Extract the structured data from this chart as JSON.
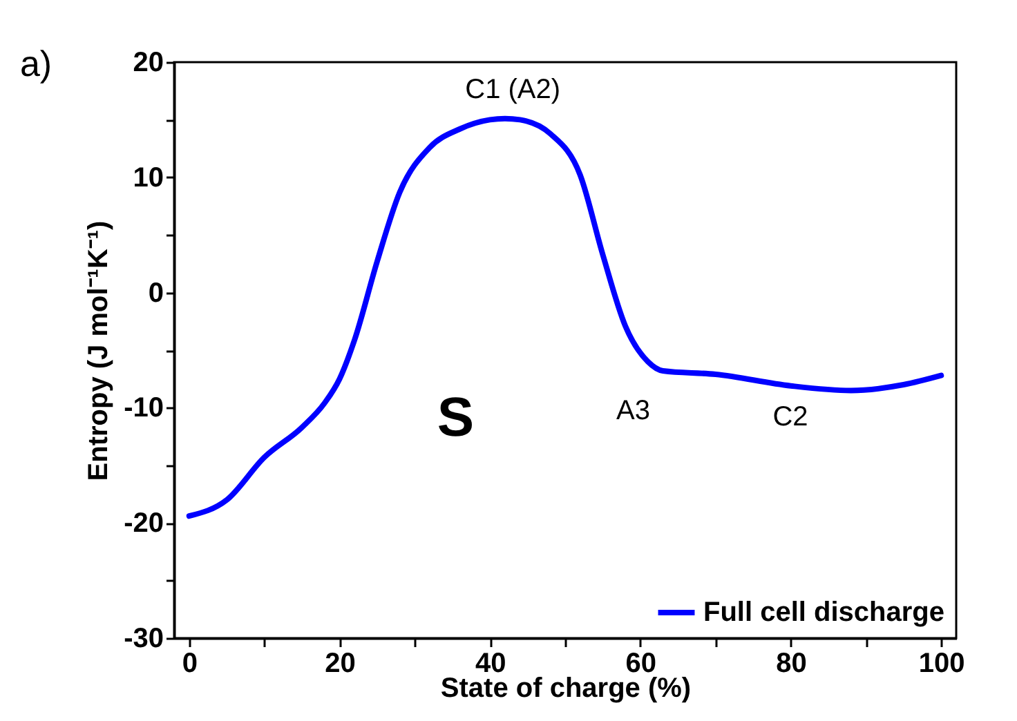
{
  "chart_data": {
    "type": "line",
    "xlabel": "State of charge (%)",
    "ylabel": "Entropy (J mol⁻¹K⁻¹)",
    "x": [
      0,
      5,
      10,
      15,
      18,
      20,
      22,
      25,
      28,
      32,
      36,
      40,
      42,
      44,
      48,
      52,
      55,
      58,
      61,
      63,
      70,
      80,
      88,
      95,
      100
    ],
    "series": [
      {
        "name": "Full cell discharge",
        "color": "#0000ff",
        "values": [
          -19.4,
          -18.0,
          -14.3,
          -11.7,
          -9.6,
          -7.5,
          -4.1,
          2.7,
          8.7,
          12.6,
          14.2,
          15.0,
          15.1,
          15.0,
          13.8,
          10.2,
          3.3,
          -2.9,
          -6.0,
          -6.8,
          -7.1,
          -8.1,
          -8.5,
          -8.0,
          -7.2
        ]
      }
    ],
    "xlim": [
      -2,
      102
    ],
    "ylim": [
      -30,
      20
    ],
    "xticks": [
      0,
      {
        "value": 10,
        "label": null
      },
      20,
      {
        "value": 30,
        "label": null
      },
      40,
      {
        "value": 50,
        "label": null
      },
      60,
      {
        "value": 70,
        "label": null
      },
      80,
      {
        "value": 90,
        "label": null
      },
      100
    ],
    "yticks": [
      -30,
      {
        "value": -25,
        "label": null
      },
      -20,
      {
        "value": -15,
        "label": null
      },
      -10,
      {
        "value": -5,
        "label": null
      },
      0,
      {
        "value": 5,
        "label": null
      },
      10,
      {
        "value": 15,
        "label": null
      },
      20
    ],
    "annotations": [
      "a)",
      "S",
      "C1 (A2)",
      "A3",
      "C2"
    ],
    "legend": "bottom right",
    "grid": false,
    "marker": "none",
    "line_style": "solid"
  }
}
